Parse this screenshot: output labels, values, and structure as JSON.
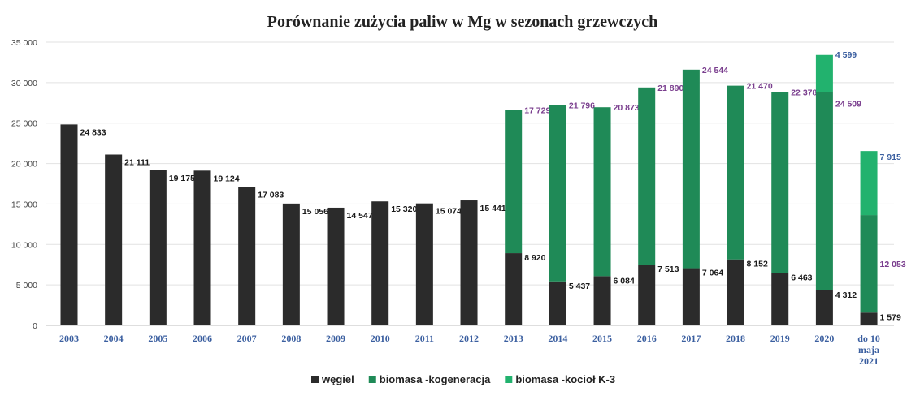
{
  "chart_data": {
    "type": "bar",
    "stacked": true,
    "title": "Porównanie zużycia paliw w Mg w sezonach grzewczych",
    "xlabel": "",
    "ylabel": "",
    "ylim": [
      0,
      35000
    ],
    "yticks": [
      0,
      5000,
      10000,
      15000,
      20000,
      25000,
      30000,
      35000
    ],
    "ytick_labels": [
      "0",
      "5 000",
      "10 000",
      "15 000",
      "20 000",
      "25 000",
      "30 000",
      "35 000"
    ],
    "grid": true,
    "legend_position": "bottom",
    "categories": [
      [
        "2003"
      ],
      [
        "2004"
      ],
      [
        "2005"
      ],
      [
        "2006"
      ],
      [
        "2007"
      ],
      [
        "2008"
      ],
      [
        "2009"
      ],
      [
        "2010"
      ],
      [
        "2011"
      ],
      [
        "2012"
      ],
      [
        "2013"
      ],
      [
        "2014"
      ],
      [
        "2015"
      ],
      [
        "2016"
      ],
      [
        "2017"
      ],
      [
        "2018"
      ],
      [
        "2019"
      ],
      [
        "2020"
      ],
      [
        "do 10",
        "maja",
        "2021"
      ]
    ],
    "series": [
      {
        "name": "węgiel",
        "color": "#2b2b2b",
        "label_color": "#1a1a1a",
        "values": [
          24833,
          21111,
          19175,
          19124,
          17083,
          15056,
          14547,
          15320,
          15074,
          15441,
          8920,
          5437,
          6084,
          7513,
          7064,
          8152,
          6463,
          4312,
          1579
        ],
        "labels": [
          "24 833",
          "21 111",
          "19 175",
          "19 124",
          "17 083",
          "15 056",
          "14 547",
          "15 320",
          "15 074",
          "15 441",
          "8 920",
          "5 437",
          "6 084",
          "7 513",
          "7 064",
          "8 152",
          "6 463",
          "4 312",
          "1 579"
        ]
      },
      {
        "name": "biomasa -kogeneracja",
        "color": "#1f8a57",
        "label_color": "#7a3e8e",
        "values": [
          0,
          0,
          0,
          0,
          0,
          0,
          0,
          0,
          0,
          0,
          17729,
          21796,
          20873,
          21890,
          24544,
          21470,
          22378,
          24509,
          12053
        ],
        "labels": [
          "",
          "",
          "",
          "",
          "",
          "",
          "",
          "",
          "",
          "",
          "17 729",
          "21 796",
          "20 873",
          "21 890",
          "24 544",
          "21 470",
          "22 378",
          "24 509",
          "12 053"
        ]
      },
      {
        "name": "biomasa -kocioł K-3",
        "color": "#22b26e",
        "label_color": "#3b5fa0",
        "values": [
          0,
          0,
          0,
          0,
          0,
          0,
          0,
          0,
          0,
          0,
          0,
          0,
          0,
          0,
          0,
          0,
          0,
          4599,
          7915
        ],
        "labels": [
          "",
          "",
          "",
          "",
          "",
          "",
          "",
          "",
          "",
          "",
          "",
          "",
          "",
          "",
          "",
          "",
          "",
          "4 599",
          "7 915"
        ]
      }
    ]
  }
}
